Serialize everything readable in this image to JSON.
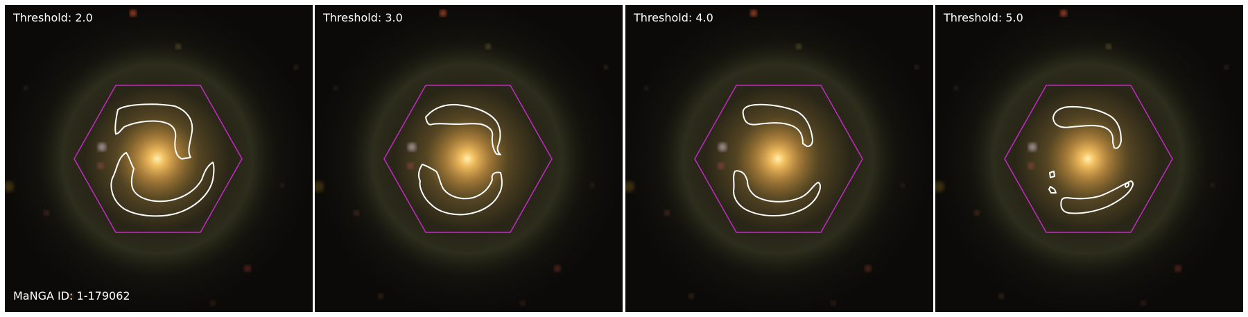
{
  "figure": {
    "manga_id_label": "MaNGA ID: 1-179062",
    "colors": {
      "hexagon": "#c22bc2",
      "contour": "#ffffff",
      "background": "#0b0a08",
      "core": "#ffe08a",
      "halo": "#8a6a2a"
    },
    "panels": [
      {
        "threshold_label": "Threshold: 2.0"
      },
      {
        "threshold_label": "Threshold: 3.0"
      },
      {
        "threshold_label": "Threshold: 4.0"
      },
      {
        "threshold_label": "Threshold: 5.0"
      }
    ]
  }
}
